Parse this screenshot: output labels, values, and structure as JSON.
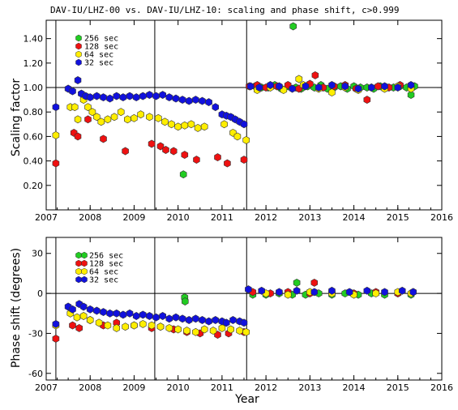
{
  "chart_data": {
    "title": "DAV-IU/LHZ-00 vs. DAV-IU/LHZ-10: scaling and phase shift, c>0.999",
    "xlabel": "Year",
    "xlim": [
      2007.0,
      2016.0
    ],
    "xticks": [
      "2007",
      "2008",
      "2009",
      "2010",
      "2011",
      "2012",
      "2013",
      "2014",
      "2015",
      "2016"
    ],
    "event_lines": [
      2007.22,
      2009.47,
      2011.56
    ],
    "series_colors": {
      "256 sec": "#22cc22",
      "128 sec": "#ee1111",
      "64 sec": "#ffee00",
      "32 sec": "#1111dd"
    },
    "panels": [
      {
        "name": "scaling",
        "type": "scatter",
        "ylabel": "Scaling factor",
        "ylim": [
          0.0,
          1.55
        ],
        "yticks": [
          "0.20",
          "0.40",
          "0.60",
          "0.80",
          "1.00",
          "1.20",
          "1.40"
        ],
        "ref_line": 1.0,
        "legend": [
          "256 sec",
          "128 sec",
          "64 sec",
          "32 sec"
        ],
        "series": [
          {
            "name": "256 sec",
            "x": [
              2010.12,
              2011.75,
              2011.9,
              2012.05,
              2012.2,
              2012.35,
              2012.5,
              2012.62,
              2012.68,
              2012.8,
              2012.95,
              2013.1,
              2013.25,
              2013.4,
              2013.55,
              2013.7,
              2013.85,
              2014.0,
              2014.15,
              2014.3,
              2014.45,
              2014.6,
              2014.75,
              2014.9,
              2015.05,
              2015.2,
              2015.3,
              2015.38
            ],
            "y": [
              0.29,
              1.01,
              1.0,
              1.0,
              1.02,
              0.99,
              1.01,
              1.5,
              1.0,
              0.99,
              1.01,
              1.0,
              1.02,
              0.99,
              1.0,
              1.01,
              0.99,
              1.01,
              1.0,
              1.0,
              0.99,
              1.01,
              1.0,
              1.0,
              1.01,
              1.0,
              0.94,
              1.01
            ]
          },
          {
            "name": "128 sec",
            "x": [
              2007.22,
              2007.63,
              2007.72,
              2007.95,
              2008.3,
              2008.8,
              2009.4,
              2009.6,
              2009.72,
              2009.9,
              2010.15,
              2010.42,
              2010.9,
              2011.12,
              2011.5,
              2011.62,
              2011.8,
              2012.0,
              2012.25,
              2012.5,
              2012.75,
              2013.0,
              2013.12,
              2013.3,
              2013.55,
              2013.8,
              2014.05,
              2014.3,
              2014.55,
              2014.8,
              2015.05,
              2015.3
            ],
            "y": [
              0.38,
              0.63,
              0.6,
              0.74,
              0.58,
              0.48,
              0.54,
              0.52,
              0.49,
              0.48,
              0.45,
              0.41,
              0.43,
              0.38,
              0.41,
              1.01,
              1.02,
              1.0,
              1.01,
              1.02,
              0.99,
              1.03,
              1.1,
              1.0,
              1.01,
              1.02,
              0.99,
              0.9,
              1.01,
              1.0,
              1.02,
              1.0
            ]
          },
          {
            "name": "64 sec",
            "x": [
              2007.22,
              2007.55,
              2007.65,
              2007.72,
              2007.85,
              2007.95,
              2008.05,
              2008.15,
              2008.25,
              2008.4,
              2008.55,
              2008.7,
              2008.85,
              2009.0,
              2009.15,
              2009.35,
              2009.55,
              2009.7,
              2009.85,
              2010.0,
              2010.15,
              2010.3,
              2010.45,
              2010.6,
              2011.05,
              2011.25,
              2011.35,
              2011.55,
              2011.8,
              2012.1,
              2012.4,
              2012.75,
              2012.85,
              2013.2,
              2013.5,
              2013.8,
              2014.1,
              2014.4,
              2014.7,
              2015.0,
              2015.3
            ],
            "y": [
              0.61,
              0.84,
              0.84,
              0.74,
              0.9,
              0.84,
              0.8,
              0.76,
              0.72,
              0.74,
              0.76,
              0.8,
              0.74,
              0.75,
              0.78,
              0.76,
              0.75,
              0.72,
              0.7,
              0.68,
              0.69,
              0.7,
              0.67,
              0.68,
              0.7,
              0.63,
              0.6,
              0.57,
              0.98,
              1.0,
              0.98,
              1.07,
              1.02,
              0.99,
              0.96,
              1.0,
              0.98,
              1.0,
              0.99,
              1.01,
              0.99
            ]
          },
          {
            "name": "32 sec",
            "x": [
              2007.22,
              2007.5,
              2007.6,
              2007.72,
              2007.8,
              2007.9,
              2008.0,
              2008.15,
              2008.3,
              2008.45,
              2008.6,
              2008.75,
              2008.9,
              2009.05,
              2009.2,
              2009.35,
              2009.5,
              2009.65,
              2009.8,
              2009.95,
              2010.1,
              2010.25,
              2010.4,
              2010.55,
              2010.7,
              2010.85,
              2011.0,
              2011.1,
              2011.2,
              2011.3,
              2011.4,
              2011.5,
              2011.65,
              2011.85,
              2012.1,
              2012.3,
              2012.6,
              2012.9,
              2013.2,
              2013.5,
              2013.8,
              2014.1,
              2014.4,
              2014.7,
              2015.0,
              2015.3
            ],
            "y": [
              0.84,
              0.99,
              0.97,
              1.06,
              0.95,
              0.93,
              0.92,
              0.93,
              0.92,
              0.91,
              0.93,
              0.92,
              0.93,
              0.92,
              0.93,
              0.94,
              0.93,
              0.94,
              0.92,
              0.91,
              0.9,
              0.89,
              0.9,
              0.89,
              0.88,
              0.84,
              0.78,
              0.77,
              0.76,
              0.74,
              0.72,
              0.7,
              1.01,
              1.0,
              1.02,
              1.01,
              0.99,
              1.01,
              1.0,
              1.02,
              1.01,
              0.99,
              1.0,
              1.01,
              1.0,
              1.02
            ]
          }
        ]
      },
      {
        "name": "phase",
        "type": "scatter",
        "ylabel": "Phase shift (degrees)",
        "ylim": [
          -65,
          42
        ],
        "yticks": [
          "-60",
          "-30",
          "0",
          "30"
        ],
        "ref_line": 0,
        "legend": [
          "256 sec",
          "128 sec",
          "64 sec",
          "32 sec"
        ],
        "series": [
          {
            "name": "256 sec",
            "x": [
              2010.15,
              2010.16,
              2011.7,
              2012.0,
              2012.3,
              2012.6,
              2012.7,
              2012.9,
              2013.2,
              2013.5,
              2013.8,
              2014.1,
              2014.4,
              2014.7,
              2015.0,
              2015.3
            ],
            "y": [
              -3,
              -6,
              -1,
              -1,
              0,
              -1,
              8,
              -1,
              0,
              -1,
              0,
              -1,
              0,
              -1,
              0,
              -1
            ]
          },
          {
            "name": "128 sec",
            "x": [
              2007.22,
              2007.6,
              2007.75,
              2008.0,
              2008.3,
              2008.6,
              2009.0,
              2009.4,
              2009.6,
              2009.9,
              2010.2,
              2010.5,
              2010.9,
              2011.15,
              2011.5,
              2011.7,
              2012.1,
              2012.5,
              2013.0,
              2013.1,
              2013.5,
              2014.0,
              2014.5,
              2015.0,
              2015.35
            ],
            "y": [
              -34,
              -24,
              -26,
              -20,
              -24,
              -22,
              -24,
              -26,
              -25,
              -27,
              -29,
              -30,
              -31,
              -30,
              -29,
              1,
              0,
              1,
              0,
              8,
              1,
              0,
              1,
              0,
              1
            ]
          },
          {
            "name": "64 sec",
            "x": [
              2007.22,
              2007.55,
              2007.7,
              2007.85,
              2008.0,
              2008.2,
              2008.4,
              2008.6,
              2008.8,
              2009.0,
              2009.2,
              2009.4,
              2009.6,
              2009.8,
              2010.0,
              2010.2,
              2010.4,
              2010.6,
              2010.8,
              2011.0,
              2011.2,
              2011.4,
              2011.55,
              2012.0,
              2012.5,
              2013.0,
              2013.5,
              2014.0,
              2014.5,
              2015.0,
              2015.3
            ],
            "y": [
              -24,
              -15,
              -18,
              -17,
              -20,
              -22,
              -24,
              -26,
              -25,
              -24,
              -23,
              -24,
              -25,
              -26,
              -27,
              -28,
              -29,
              -27,
              -28,
              -26,
              -27,
              -28,
              -29,
              0,
              -1,
              1,
              0,
              -1,
              0,
              1,
              0
            ]
          },
          {
            "name": "32 sec",
            "x": [
              2007.22,
              2007.5,
              2007.6,
              2007.75,
              2007.85,
              2008.0,
              2008.15,
              2008.3,
              2008.45,
              2008.6,
              2008.75,
              2008.9,
              2009.05,
              2009.2,
              2009.35,
              2009.5,
              2009.65,
              2009.8,
              2009.95,
              2010.1,
              2010.25,
              2010.4,
              2010.55,
              2010.7,
              2010.85,
              2011.0,
              2011.1,
              2011.25,
              2011.4,
              2011.5,
              2011.6,
              2011.9,
              2012.3,
              2012.7,
              2013.1,
              2013.5,
              2013.9,
              2014.3,
              2014.7,
              2015.1,
              2015.35
            ],
            "y": [
              -23,
              -10,
              -12,
              -8,
              -10,
              -12,
              -13,
              -14,
              -15,
              -15,
              -16,
              -15,
              -17,
              -16,
              -17,
              -18,
              -17,
              -19,
              -18,
              -19,
              -20,
              -19,
              -20,
              -21,
              -20,
              -21,
              -22,
              -20,
              -21,
              -22,
              3,
              2,
              1,
              2,
              1,
              2,
              1,
              2,
              1,
              2,
              1
            ]
          }
        ]
      }
    ]
  }
}
